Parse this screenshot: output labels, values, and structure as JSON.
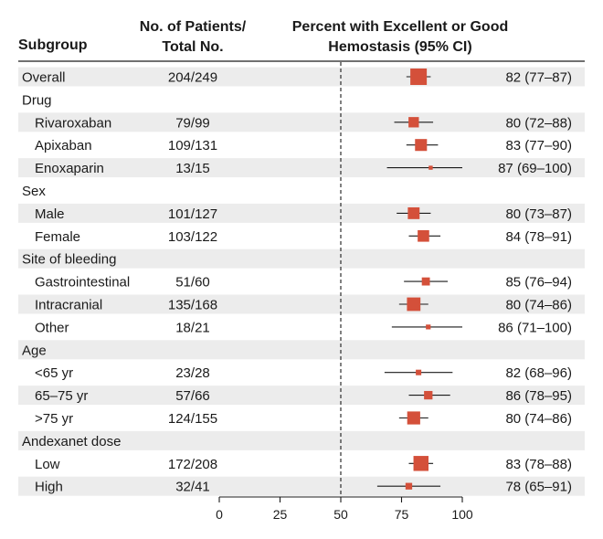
{
  "chart_data": {
    "type": "forest",
    "headers": {
      "subgroup": "Subgroup",
      "patients_line1": "No. of Patients/",
      "patients_line2": "Total No.",
      "percent_line1": "Percent with Excellent or Good",
      "percent_line2": "Hemostasis (95% CI)"
    },
    "x_axis": {
      "min": 0,
      "max": 100,
      "ticks": [
        0,
        25,
        50,
        75,
        100
      ],
      "reference_line": 50
    },
    "colors": {
      "marker": "#d4503a",
      "shade": "#ececec",
      "text": "#1a1a1a"
    },
    "rows": [
      {
        "label": "Overall",
        "indent": false,
        "shaded": true,
        "n": "204/249",
        "est": 82,
        "lo": 77,
        "hi": 87,
        "ci_text": "82 (77–87)",
        "weight": 249
      },
      {
        "label": "Drug",
        "indent": false,
        "shaded": false,
        "header": true
      },
      {
        "label": "Rivaroxaban",
        "indent": true,
        "shaded": true,
        "n": "79/99",
        "est": 80,
        "lo": 72,
        "hi": 88,
        "ci_text": "80 (72–88)",
        "weight": 99
      },
      {
        "label": "Apixaban",
        "indent": true,
        "shaded": false,
        "n": "109/131",
        "est": 83,
        "lo": 77,
        "hi": 90,
        "ci_text": "83 (77–90)",
        "weight": 131
      },
      {
        "label": "Enoxaparin",
        "indent": true,
        "shaded": true,
        "n": "13/15",
        "est": 87,
        "lo": 69,
        "hi": 100,
        "ci_text": "87 (69–100)",
        "weight": 15
      },
      {
        "label": "Sex",
        "indent": false,
        "shaded": false,
        "header": true
      },
      {
        "label": "Male",
        "indent": true,
        "shaded": true,
        "n": "101/127",
        "est": 80,
        "lo": 73,
        "hi": 87,
        "ci_text": "80 (73–87)",
        "weight": 127
      },
      {
        "label": "Female",
        "indent": true,
        "shaded": false,
        "n": "103/122",
        "est": 84,
        "lo": 78,
        "hi": 91,
        "ci_text": "84 (78–91)",
        "weight": 122
      },
      {
        "label": "Site of bleeding",
        "indent": false,
        "shaded": true,
        "header": true
      },
      {
        "label": "Gastrointestinal",
        "indent": true,
        "shaded": false,
        "n": "51/60",
        "est": 85,
        "lo": 76,
        "hi": 94,
        "ci_text": "85 (76–94)",
        "weight": 60
      },
      {
        "label": "Intracranial",
        "indent": true,
        "shaded": true,
        "n": "135/168",
        "est": 80,
        "lo": 74,
        "hi": 86,
        "ci_text": "80 (74–86)",
        "weight": 168
      },
      {
        "label": "Other",
        "indent": true,
        "shaded": false,
        "n": "18/21",
        "est": 86,
        "lo": 71,
        "hi": 100,
        "ci_text": "86 (71–100)",
        "weight": 21
      },
      {
        "label": "Age",
        "indent": false,
        "shaded": true,
        "header": true
      },
      {
        "label": "<65 yr",
        "indent": true,
        "shaded": false,
        "n": "23/28",
        "est": 82,
        "lo": 68,
        "hi": 96,
        "ci_text": "82 (68–96)",
        "weight": 28
      },
      {
        "label": "65–75 yr",
        "indent": true,
        "shaded": true,
        "n": "57/66",
        "est": 86,
        "lo": 78,
        "hi": 95,
        "ci_text": "86 (78–95)",
        "weight": 66
      },
      {
        "label": ">75 yr",
        "indent": true,
        "shaded": false,
        "n": "124/155",
        "est": 80,
        "lo": 74,
        "hi": 86,
        "ci_text": "80 (74–86)",
        "weight": 155
      },
      {
        "label": "Andexanet dose",
        "indent": false,
        "shaded": true,
        "header": true
      },
      {
        "label": "Low",
        "indent": true,
        "shaded": false,
        "n": "172/208",
        "est": 83,
        "lo": 78,
        "hi": 88,
        "ci_text": "83 (78–88)",
        "weight": 208
      },
      {
        "label": "High",
        "indent": true,
        "shaded": true,
        "n": "32/41",
        "est": 78,
        "lo": 65,
        "hi": 91,
        "ci_text": "78 (65–91)",
        "weight": 41
      }
    ]
  }
}
